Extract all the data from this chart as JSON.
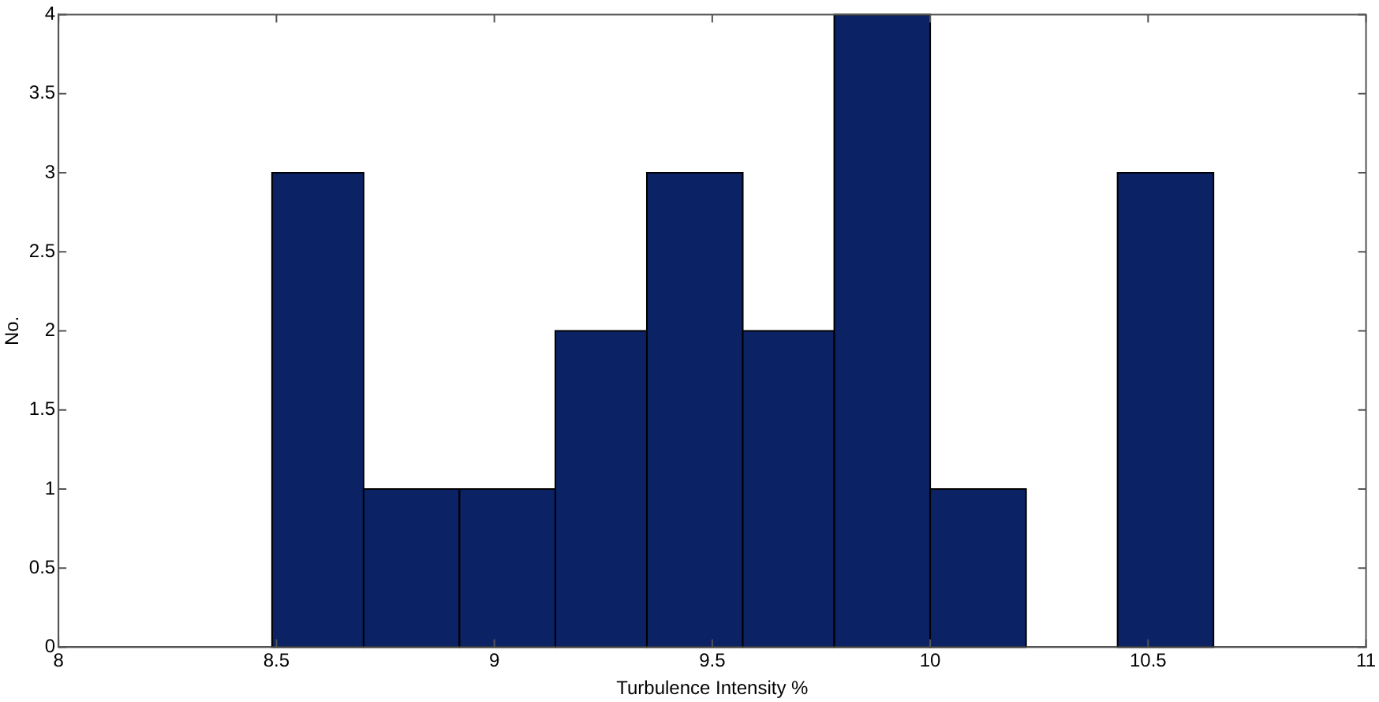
{
  "chart_data": {
    "type": "histogram",
    "xlabel": "Turbulence Intensity %",
    "ylabel": "No.",
    "bins": [
      8.49,
      8.7,
      8.92,
      9.14,
      9.35,
      9.57,
      9.78,
      10.0,
      10.22,
      10.43,
      10.65
    ],
    "values": [
      3,
      1,
      1,
      2,
      3,
      2,
      4,
      1,
      0,
      3
    ],
    "color": "#0b2265",
    "xlim": [
      8,
      11
    ],
    "xticks": [
      8,
      8.5,
      9,
      9.5,
      10,
      10.5,
      11
    ],
    "ylim": [
      0,
      4
    ],
    "yticks": [
      0,
      0.5,
      1,
      1.5,
      2,
      2.5,
      3,
      3.5,
      4
    ],
    "grid": false,
    "legend": false
  }
}
